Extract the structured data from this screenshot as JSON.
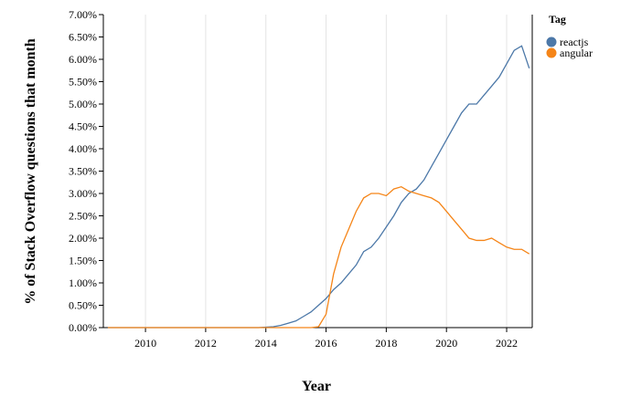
{
  "chart_data": {
    "type": "line",
    "x_label": "Year",
    "y_label": "% of Stack Overflow questions that month",
    "legend_title": "Tag",
    "legend_position": "right",
    "grid": true,
    "xlim": [
      2008.6,
      2022.85
    ],
    "xticks": [
      2010,
      2012,
      2014,
      2016,
      2018,
      2020,
      2022
    ],
    "ylim": [
      0,
      7
    ],
    "yticks": [
      {
        "value": 0,
        "label": "0.00%"
      },
      {
        "value": 0.5,
        "label": "0.50%"
      },
      {
        "value": 1,
        "label": "1.00%"
      },
      {
        "value": 1.5,
        "label": "1.50%"
      },
      {
        "value": 2,
        "label": "2.00%"
      },
      {
        "value": 2.5,
        "label": "2.50%"
      },
      {
        "value": 3,
        "label": "3.00%"
      },
      {
        "value": 3.5,
        "label": "3.50%"
      },
      {
        "value": 4,
        "label": "4.00%"
      },
      {
        "value": 4.5,
        "label": "4.50%"
      },
      {
        "value": 5,
        "label": "5.00%"
      },
      {
        "value": 5.5,
        "label": "5.50%"
      },
      {
        "value": 6,
        "label": "6.00%"
      },
      {
        "value": 6.5,
        "label": "6.50%"
      },
      {
        "value": 7,
        "label": "7.00%"
      }
    ],
    "x": [
      2008.75,
      2009,
      2009.25,
      2009.5,
      2009.75,
      2010,
      2010.25,
      2010.5,
      2010.75,
      2011,
      2011.25,
      2011.5,
      2011.75,
      2012,
      2012.25,
      2012.5,
      2012.75,
      2013,
      2013.25,
      2013.5,
      2013.75,
      2014,
      2014.25,
      2014.5,
      2014.75,
      2015,
      2015.25,
      2015.5,
      2015.75,
      2016,
      2016.25,
      2016.5,
      2016.75,
      2017,
      2017.25,
      2017.5,
      2017.75,
      2018,
      2018.25,
      2018.5,
      2018.75,
      2019,
      2019.25,
      2019.5,
      2019.75,
      2020,
      2020.25,
      2020.5,
      2020.75,
      2021,
      2021.25,
      2021.5,
      2021.75,
      2022,
      2022.25,
      2022.5,
      2022.75
    ],
    "series": [
      {
        "name": "reactjs",
        "color": "#4c78a8",
        "values": [
          0,
          0,
          0,
          0,
          0,
          0,
          0,
          0,
          0,
          0,
          0,
          0,
          0,
          0,
          0,
          0,
          0,
          0,
          0,
          0,
          0,
          0.01,
          0.02,
          0.05,
          0.1,
          0.15,
          0.25,
          0.35,
          0.5,
          0.65,
          0.85,
          1.0,
          1.2,
          1.4,
          1.7,
          1.8,
          2.0,
          2.25,
          2.5,
          2.8,
          3.0,
          3.1,
          3.3,
          3.6,
          3.9,
          4.2,
          4.5,
          4.8,
          5.0,
          5.0,
          5.2,
          5.4,
          5.6,
          5.9,
          6.2,
          6.3,
          5.8
        ]
      },
      {
        "name": "angular",
        "color": "#f58518",
        "values": [
          0,
          0,
          0,
          0,
          0,
          0,
          0,
          0,
          0,
          0,
          0,
          0,
          0,
          0,
          0,
          0,
          0,
          0,
          0,
          0,
          0,
          0,
          0,
          0,
          0,
          0,
          0,
          0,
          0.02,
          0.3,
          1.2,
          1.8,
          2.2,
          2.6,
          2.9,
          3.0,
          3.0,
          2.95,
          3.1,
          3.15,
          3.05,
          3.0,
          2.95,
          2.9,
          2.8,
          2.6,
          2.4,
          2.2,
          2.0,
          1.95,
          1.95,
          2.0,
          1.9,
          1.8,
          1.75,
          1.75,
          1.65
        ]
      }
    ]
  }
}
